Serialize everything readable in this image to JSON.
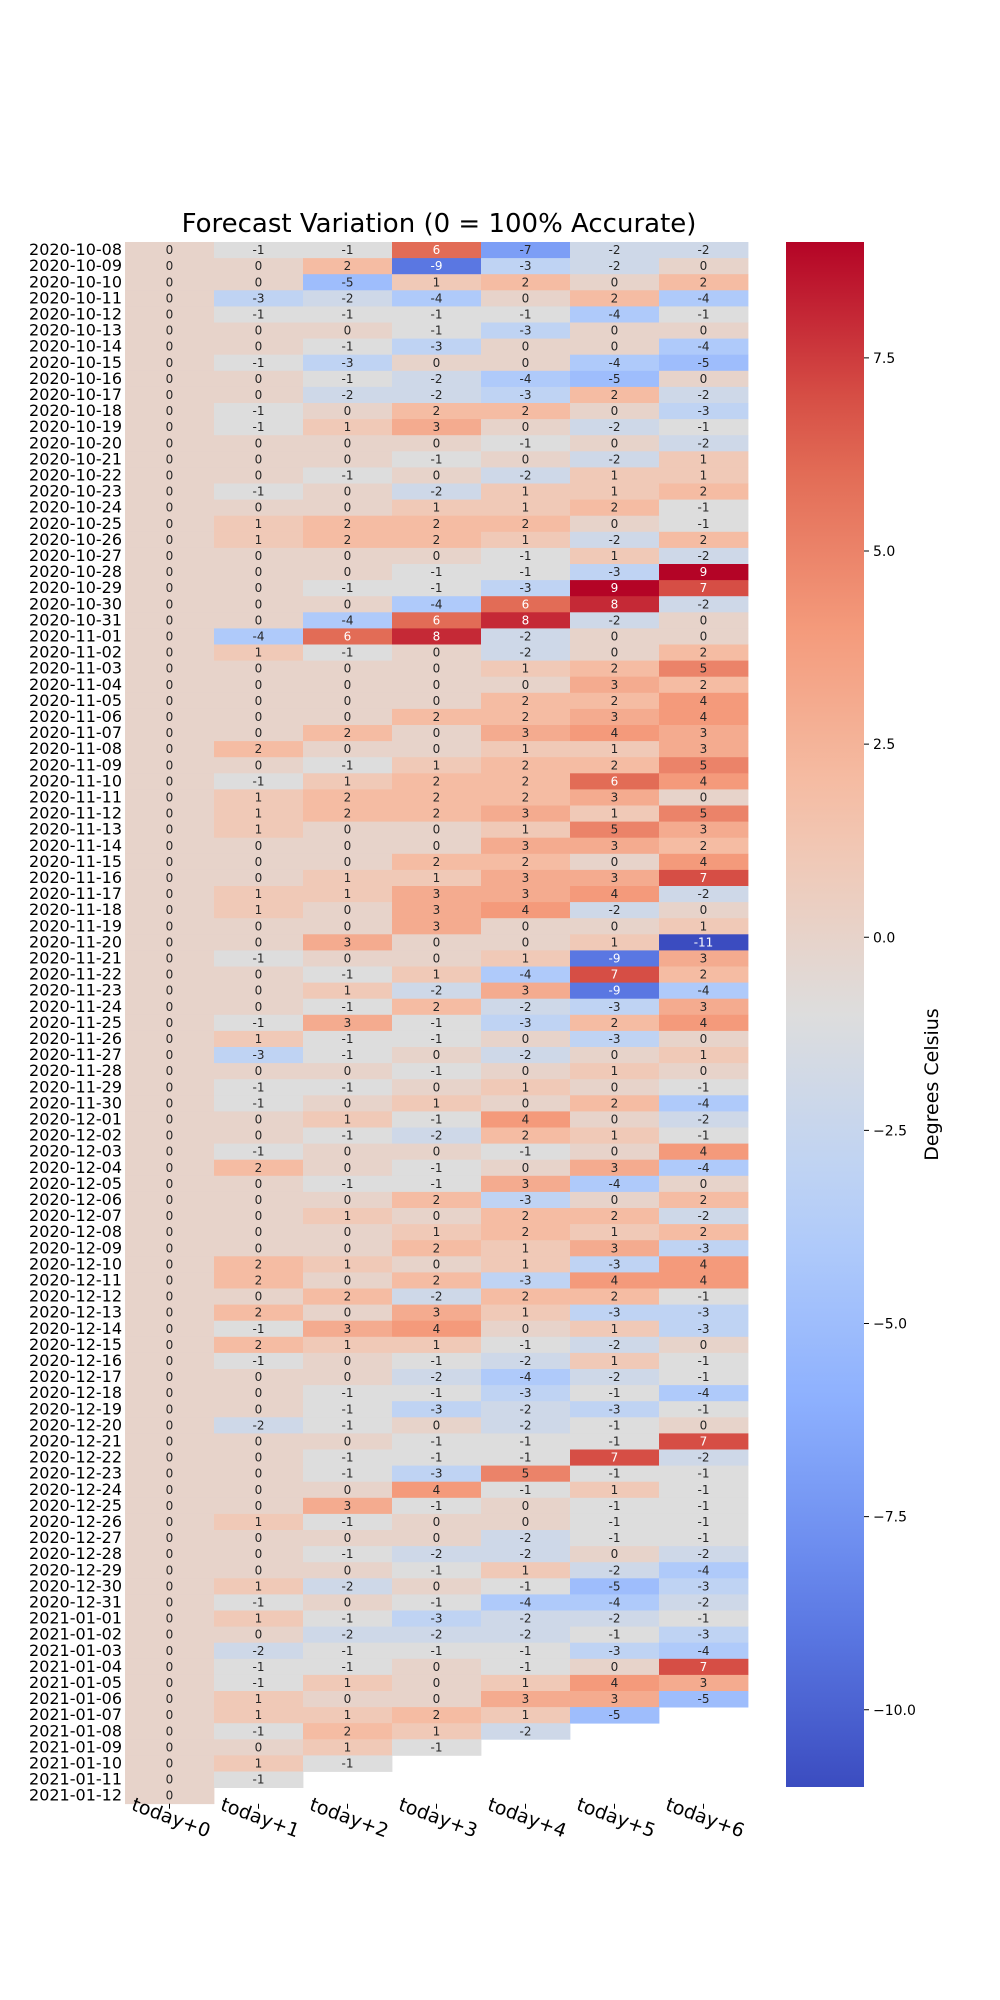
{
  "chart_data": {
    "type": "heatmap",
    "title": "Forecast Variation (0 = 100% Accurate)",
    "colorbar_label": "Degrees Celsius",
    "colorbar_ticks": [
      7.5,
      5.0,
      2.5,
      0.0,
      -2.5,
      -5.0,
      -7.5,
      -10.0
    ],
    "colorbar_tick_labels": [
      "7.5",
      "5.0",
      "2.5",
      "0.0",
      "−2.5",
      "−5.0",
      "−7.5",
      "−10.0"
    ],
    "vmin": -11,
    "vmax": 9,
    "colormap": "coolwarm",
    "colors": {
      "low": "#3b4cc0",
      "mid": "#dddddd",
      "high": "#b40426"
    },
    "columns": [
      "today+0",
      "today+1",
      "today+2",
      "today+3",
      "today+4",
      "today+5",
      "today+6"
    ],
    "rows": [
      {
        "date": "2020-10-08",
        "values": [
          0,
          -1,
          -1,
          6,
          -7,
          -2,
          -2
        ]
      },
      {
        "date": "2020-10-09",
        "values": [
          0,
          0,
          2,
          -9,
          -3,
          -2,
          0
        ]
      },
      {
        "date": "2020-10-10",
        "values": [
          0,
          0,
          -5,
          1,
          2,
          0,
          2
        ]
      },
      {
        "date": "2020-10-11",
        "values": [
          0,
          -3,
          -2,
          -4,
          0,
          2,
          -4
        ]
      },
      {
        "date": "2020-10-12",
        "values": [
          0,
          -1,
          -1,
          -1,
          -1,
          -4,
          -1
        ]
      },
      {
        "date": "2020-10-13",
        "values": [
          0,
          0,
          0,
          -1,
          -3,
          0,
          0
        ]
      },
      {
        "date": "2020-10-14",
        "values": [
          0,
          0,
          -1,
          -3,
          0,
          0,
          -4
        ]
      },
      {
        "date": "2020-10-15",
        "values": [
          0,
          -1,
          -3,
          0,
          0,
          -4,
          -5
        ]
      },
      {
        "date": "2020-10-16",
        "values": [
          0,
          0,
          -1,
          -2,
          -4,
          -5,
          0
        ]
      },
      {
        "date": "2020-10-17",
        "values": [
          0,
          0,
          -2,
          -2,
          -3,
          2,
          -2
        ]
      },
      {
        "date": "2020-10-18",
        "values": [
          0,
          -1,
          0,
          2,
          2,
          0,
          -3
        ]
      },
      {
        "date": "2020-10-19",
        "values": [
          0,
          -1,
          1,
          3,
          0,
          -2,
          -1
        ]
      },
      {
        "date": "2020-10-20",
        "values": [
          0,
          0,
          0,
          0,
          -1,
          0,
          -2
        ]
      },
      {
        "date": "2020-10-21",
        "values": [
          0,
          0,
          0,
          -1,
          0,
          -2,
          1
        ]
      },
      {
        "date": "2020-10-22",
        "values": [
          0,
          0,
          -1,
          0,
          -2,
          1,
          1
        ]
      },
      {
        "date": "2020-10-23",
        "values": [
          0,
          -1,
          0,
          -2,
          1,
          1,
          2
        ]
      },
      {
        "date": "2020-10-24",
        "values": [
          0,
          0,
          0,
          1,
          1,
          2,
          -1
        ]
      },
      {
        "date": "2020-10-25",
        "values": [
          0,
          1,
          2,
          2,
          2,
          0,
          -1
        ]
      },
      {
        "date": "2020-10-26",
        "values": [
          0,
          1,
          2,
          2,
          1,
          -2,
          2
        ]
      },
      {
        "date": "2020-10-27",
        "values": [
          0,
          0,
          0,
          0,
          -1,
          1,
          -2
        ]
      },
      {
        "date": "2020-10-28",
        "values": [
          0,
          0,
          0,
          -1,
          -1,
          -3,
          9
        ]
      },
      {
        "date": "2020-10-29",
        "values": [
          0,
          0,
          -1,
          -1,
          -3,
          9,
          7
        ]
      },
      {
        "date": "2020-10-30",
        "values": [
          0,
          0,
          0,
          -4,
          6,
          8,
          -2
        ]
      },
      {
        "date": "2020-10-31",
        "values": [
          0,
          0,
          -4,
          6,
          8,
          -2,
          0
        ]
      },
      {
        "date": "2020-11-01",
        "values": [
          0,
          -4,
          6,
          8,
          -2,
          0,
          0
        ]
      },
      {
        "date": "2020-11-02",
        "values": [
          0,
          1,
          -1,
          0,
          -2,
          0,
          2
        ]
      },
      {
        "date": "2020-11-03",
        "values": [
          0,
          0,
          0,
          0,
          1,
          2,
          5
        ]
      },
      {
        "date": "2020-11-04",
        "values": [
          0,
          0,
          0,
          0,
          0,
          3,
          2
        ]
      },
      {
        "date": "2020-11-05",
        "values": [
          0,
          0,
          0,
          0,
          2,
          2,
          4
        ]
      },
      {
        "date": "2020-11-06",
        "values": [
          0,
          0,
          0,
          2,
          2,
          3,
          4
        ]
      },
      {
        "date": "2020-11-07",
        "values": [
          0,
          0,
          2,
          0,
          3,
          4,
          3
        ]
      },
      {
        "date": "2020-11-08",
        "values": [
          0,
          2,
          0,
          0,
          1,
          1,
          3
        ]
      },
      {
        "date": "2020-11-09",
        "values": [
          0,
          0,
          -1,
          1,
          2,
          2,
          5
        ]
      },
      {
        "date": "2020-11-10",
        "values": [
          0,
          -1,
          1,
          2,
          2,
          6,
          4
        ]
      },
      {
        "date": "2020-11-11",
        "values": [
          0,
          1,
          2,
          2,
          2,
          3,
          0
        ]
      },
      {
        "date": "2020-11-12",
        "values": [
          0,
          1,
          2,
          2,
          3,
          1,
          5
        ]
      },
      {
        "date": "2020-11-13",
        "values": [
          0,
          1,
          0,
          0,
          1,
          5,
          3
        ]
      },
      {
        "date": "2020-11-14",
        "values": [
          0,
          0,
          0,
          0,
          3,
          3,
          2
        ]
      },
      {
        "date": "2020-11-15",
        "values": [
          0,
          0,
          0,
          2,
          2,
          0,
          4
        ]
      },
      {
        "date": "2020-11-16",
        "values": [
          0,
          0,
          1,
          1,
          3,
          3,
          7
        ]
      },
      {
        "date": "2020-11-17",
        "values": [
          0,
          1,
          1,
          3,
          3,
          4,
          -2
        ]
      },
      {
        "date": "2020-11-18",
        "values": [
          0,
          1,
          0,
          3,
          4,
          -2,
          0
        ]
      },
      {
        "date": "2020-11-19",
        "values": [
          0,
          0,
          0,
          3,
          0,
          0,
          1
        ]
      },
      {
        "date": "2020-11-20",
        "values": [
          0,
          0,
          3,
          0,
          0,
          1,
          -11
        ]
      },
      {
        "date": "2020-11-21",
        "values": [
          0,
          -1,
          0,
          0,
          1,
          -9,
          3
        ]
      },
      {
        "date": "2020-11-22",
        "values": [
          0,
          0,
          -1,
          1,
          -4,
          7,
          2
        ]
      },
      {
        "date": "2020-11-23",
        "values": [
          0,
          0,
          1,
          -2,
          3,
          -9,
          -4
        ]
      },
      {
        "date": "2020-11-24",
        "values": [
          0,
          0,
          -1,
          2,
          -2,
          -3,
          3
        ]
      },
      {
        "date": "2020-11-25",
        "values": [
          0,
          -1,
          3,
          -1,
          -3,
          2,
          4
        ]
      },
      {
        "date": "2020-11-26",
        "values": [
          0,
          1,
          -1,
          -1,
          0,
          -3,
          0
        ]
      },
      {
        "date": "2020-11-27",
        "values": [
          0,
          -3,
          -1,
          0,
          -2,
          0,
          1
        ]
      },
      {
        "date": "2020-11-28",
        "values": [
          0,
          0,
          0,
          -1,
          0,
          1,
          0
        ]
      },
      {
        "date": "2020-11-29",
        "values": [
          0,
          -1,
          -1,
          0,
          1,
          0,
          -1
        ]
      },
      {
        "date": "2020-11-30",
        "values": [
          0,
          -1,
          0,
          1,
          0,
          2,
          -4
        ]
      },
      {
        "date": "2020-12-01",
        "values": [
          0,
          0,
          1,
          -1,
          4,
          0,
          -2
        ]
      },
      {
        "date": "2020-12-02",
        "values": [
          0,
          0,
          -1,
          -2,
          2,
          1,
          -1
        ]
      },
      {
        "date": "2020-12-03",
        "values": [
          0,
          -1,
          0,
          0,
          -1,
          0,
          4
        ]
      },
      {
        "date": "2020-12-04",
        "values": [
          0,
          2,
          0,
          -1,
          0,
          3,
          -4
        ]
      },
      {
        "date": "2020-12-05",
        "values": [
          0,
          0,
          -1,
          -1,
          3,
          -4,
          0
        ]
      },
      {
        "date": "2020-12-06",
        "values": [
          0,
          0,
          0,
          2,
          -3,
          0,
          2
        ]
      },
      {
        "date": "2020-12-07",
        "values": [
          0,
          0,
          1,
          0,
          2,
          2,
          -2
        ]
      },
      {
        "date": "2020-12-08",
        "values": [
          0,
          0,
          0,
          1,
          2,
          1,
          2
        ]
      },
      {
        "date": "2020-12-09",
        "values": [
          0,
          0,
          0,
          2,
          1,
          3,
          -3
        ]
      },
      {
        "date": "2020-12-10",
        "values": [
          0,
          2,
          1,
          0,
          1,
          -3,
          4
        ]
      },
      {
        "date": "2020-12-11",
        "values": [
          0,
          2,
          0,
          2,
          -3,
          4,
          4
        ]
      },
      {
        "date": "2020-12-12",
        "values": [
          0,
          0,
          2,
          -2,
          2,
          2,
          -1
        ]
      },
      {
        "date": "2020-12-13",
        "values": [
          0,
          2,
          0,
          3,
          1,
          -3,
          -3
        ]
      },
      {
        "date": "2020-12-14",
        "values": [
          0,
          -1,
          3,
          4,
          0,
          1,
          -3
        ]
      },
      {
        "date": "2020-12-15",
        "values": [
          0,
          2,
          1,
          1,
          -1,
          -2,
          0
        ]
      },
      {
        "date": "2020-12-16",
        "values": [
          0,
          -1,
          0,
          -1,
          -2,
          1,
          -1
        ]
      },
      {
        "date": "2020-12-17",
        "values": [
          0,
          0,
          0,
          -2,
          -4,
          -2,
          -1
        ]
      },
      {
        "date": "2020-12-18",
        "values": [
          0,
          0,
          -1,
          -1,
          -3,
          -1,
          -4
        ]
      },
      {
        "date": "2020-12-19",
        "values": [
          0,
          0,
          -1,
          -3,
          -2,
          -3,
          -1
        ]
      },
      {
        "date": "2020-12-20",
        "values": [
          0,
          -2,
          -1,
          0,
          -2,
          -1,
          0
        ]
      },
      {
        "date": "2020-12-21",
        "values": [
          0,
          0,
          0,
          -1,
          -1,
          -1,
          7
        ]
      },
      {
        "date": "2020-12-22",
        "values": [
          0,
          0,
          -1,
          -1,
          -1,
          7,
          -2
        ]
      },
      {
        "date": "2020-12-23",
        "values": [
          0,
          0,
          -1,
          -3,
          5,
          -1,
          -1
        ]
      },
      {
        "date": "2020-12-24",
        "values": [
          0,
          0,
          0,
          4,
          -1,
          1,
          -1
        ]
      },
      {
        "date": "2020-12-25",
        "values": [
          0,
          0,
          3,
          -1,
          0,
          -1,
          -1
        ]
      },
      {
        "date": "2020-12-26",
        "values": [
          0,
          1,
          -1,
          0,
          0,
          -1,
          -1
        ]
      },
      {
        "date": "2020-12-27",
        "values": [
          0,
          0,
          0,
          0,
          -2,
          -1,
          -1
        ]
      },
      {
        "date": "2020-12-28",
        "values": [
          0,
          0,
          -1,
          -2,
          -2,
          0,
          -2
        ]
      },
      {
        "date": "2020-12-29",
        "values": [
          0,
          0,
          0,
          -1,
          1,
          -2,
          -4
        ]
      },
      {
        "date": "2020-12-30",
        "values": [
          0,
          1,
          -2,
          0,
          -1,
          -5,
          -3
        ]
      },
      {
        "date": "2020-12-31",
        "values": [
          0,
          -1,
          0,
          -1,
          -4,
          -4,
          -2
        ]
      },
      {
        "date": "2021-01-01",
        "values": [
          0,
          1,
          -1,
          -3,
          -2,
          -2,
          -1
        ]
      },
      {
        "date": "2021-01-02",
        "values": [
          0,
          0,
          -2,
          -2,
          -2,
          -1,
          -3
        ]
      },
      {
        "date": "2021-01-03",
        "values": [
          0,
          -2,
          -1,
          -1,
          -1,
          -3,
          -4
        ]
      },
      {
        "date": "2021-01-04",
        "values": [
          0,
          -1,
          -1,
          0,
          -1,
          0,
          7
        ]
      },
      {
        "date": "2021-01-05",
        "values": [
          0,
          -1,
          1,
          0,
          1,
          4,
          3
        ]
      },
      {
        "date": "2021-01-06",
        "values": [
          0,
          1,
          0,
          0,
          3,
          3,
          -5
        ]
      },
      {
        "date": "2021-01-07",
        "values": [
          0,
          1,
          1,
          2,
          1,
          -5
        ]
      },
      {
        "date": "2021-01-08",
        "values": [
          0,
          -1,
          2,
          1,
          -2
        ]
      },
      {
        "date": "2021-01-09",
        "values": [
          0,
          0,
          1,
          -1
        ]
      },
      {
        "date": "2021-01-10",
        "values": [
          0,
          1,
          -1
        ]
      },
      {
        "date": "2021-01-11",
        "values": [
          0,
          -1
        ]
      },
      {
        "date": "2021-01-12",
        "values": [
          0
        ]
      }
    ]
  }
}
